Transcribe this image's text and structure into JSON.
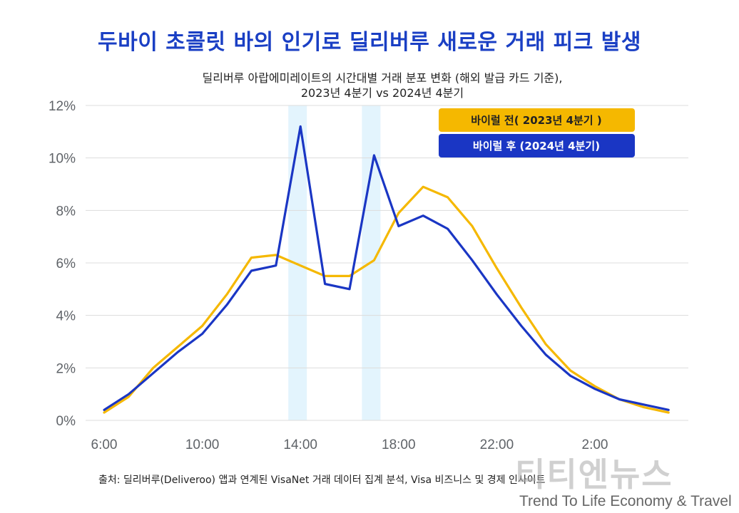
{
  "page": {
    "title": "두바이 초콜릿 바의 인기로 딜리버루 새로운 거래 피크 발생",
    "subtitle_line1": "딜리버루 아랍에미레이트의 시간대별 거래 분포 변화 (해외 발급 카드 기준),",
    "subtitle_line2": "2023년 4분기 vs 2024년 4분기",
    "source": "출처: 딜리버루(Deliveroo) 앱과 연계된 VisaNet 거래 데이터 집계 분석, Visa 비즈니스 및 경제 인사이트",
    "watermark": "티티엔뉴스",
    "watermark_sub": "Trend To Life Economy & Travel"
  },
  "chart_data": {
    "type": "line",
    "x_hours": [
      6,
      7,
      8,
      9,
      10,
      11,
      12,
      13,
      14,
      15,
      16,
      17,
      18,
      19,
      20,
      21,
      22,
      23,
      24,
      25,
      26,
      27,
      28,
      29,
      30
    ],
    "x_ticks": [
      {
        "hour": 6,
        "label": "6:00"
      },
      {
        "hour": 10,
        "label": "10:00"
      },
      {
        "hour": 14,
        "label": "14:00"
      },
      {
        "hour": 18,
        "label": "18:00"
      },
      {
        "hour": 22,
        "label": "22:00"
      },
      {
        "hour": 26,
        "label": "2:00"
      }
    ],
    "y_ticks": [
      {
        "value": 0,
        "label": "0%"
      },
      {
        "value": 2,
        "label": "2%"
      },
      {
        "value": 4,
        "label": "4%"
      },
      {
        "value": 6,
        "label": "6%"
      },
      {
        "value": 8,
        "label": "8%"
      },
      {
        "value": 10,
        "label": "10%"
      },
      {
        "value": 12,
        "label": "12%"
      }
    ],
    "ylim": [
      0,
      12
    ],
    "xlim": [
      6,
      30
    ],
    "grid": true,
    "highlight_hours": [
      14,
      17
    ],
    "legend_position": "top-right",
    "series": [
      {
        "name": "바이럴 전( 2023년 4분기 )",
        "color": "#f5b800",
        "values": [
          0.3,
          0.9,
          2.0,
          2.8,
          3.6,
          4.8,
          6.2,
          6.3,
          5.9,
          5.5,
          5.5,
          6.1,
          7.9,
          8.9,
          8.5,
          7.4,
          5.8,
          4.3,
          2.9,
          1.9,
          1.3,
          0.8,
          0.5,
          0.3
        ]
      },
      {
        "name": "바이럴 후 (2024년 4분기)",
        "color": "#1a36c4",
        "values": [
          0.4,
          1.0,
          1.8,
          2.6,
          3.3,
          4.4,
          5.7,
          5.9,
          11.2,
          5.2,
          5.0,
          10.1,
          7.4,
          7.8,
          7.3,
          6.1,
          4.8,
          3.6,
          2.5,
          1.7,
          1.2,
          0.8,
          0.6,
          0.4
        ]
      }
    ]
  }
}
